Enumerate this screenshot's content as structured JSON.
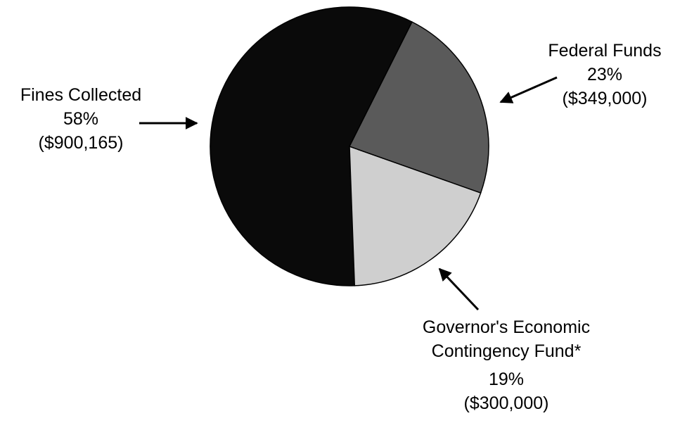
{
  "chart_data": {
    "type": "pie",
    "categories": [
      "Federal Funds",
      "Governor's Economic Contingency Fund*",
      "Fines Collected"
    ],
    "values": [
      23,
      19,
      58
    ],
    "value_labels": [
      "23%",
      "19%",
      "58%"
    ],
    "amount_labels": [
      "($349,000)",
      "($300,000)",
      "($900,165)"
    ],
    "colors": [
      "#5a5a5a",
      "#cfcfcf",
      "#0a0a0a"
    ]
  }
}
